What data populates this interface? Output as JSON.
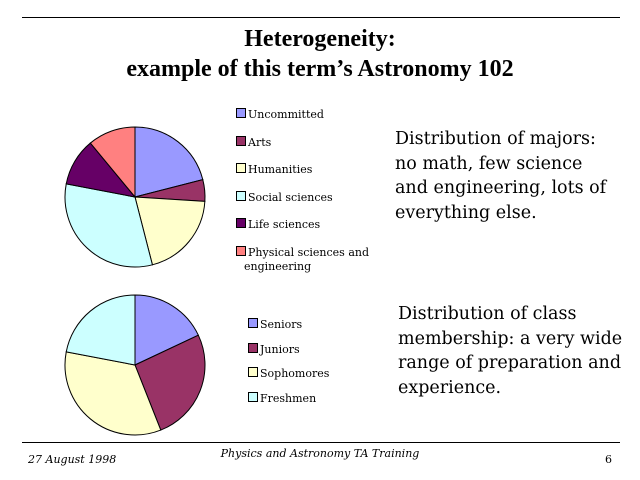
{
  "title": {
    "line1": "Heterogeneity:",
    "line2": "example of this term’s Astronomy 102"
  },
  "description": {
    "majors": "Distribution of majors: no math, few science and engineering, lots of everything else.",
    "class": "Distribution of class membership: a very wide range of preparation and experience."
  },
  "footer": {
    "date": "27 August 1998",
    "center": "Physics and Astronomy TA Training",
    "page": "6"
  },
  "chart_data": [
    {
      "type": "pie",
      "categories": [
        "Uncommitted",
        "Arts",
        "Humanities",
        "Social sciences",
        "Life sciences",
        "Physical sciences and engineering"
      ],
      "values": [
        21,
        5,
        20,
        32,
        11,
        11
      ],
      "colors": [
        "#9999ff",
        "#993366",
        "#ffffcc",
        "#ccffff",
        "#660066",
        "#ff8080"
      ],
      "legend_position": "right",
      "edge_color": "#000000"
    },
    {
      "type": "pie",
      "categories": [
        "Seniors",
        "Juniors",
        "Sophomores",
        "Freshmen"
      ],
      "values": [
        18,
        26,
        34,
        22
      ],
      "colors": [
        "#9999ff",
        "#993366",
        "#ffffcc",
        "#ccffff"
      ],
      "legend_position": "right",
      "edge_color": "#000000"
    }
  ]
}
